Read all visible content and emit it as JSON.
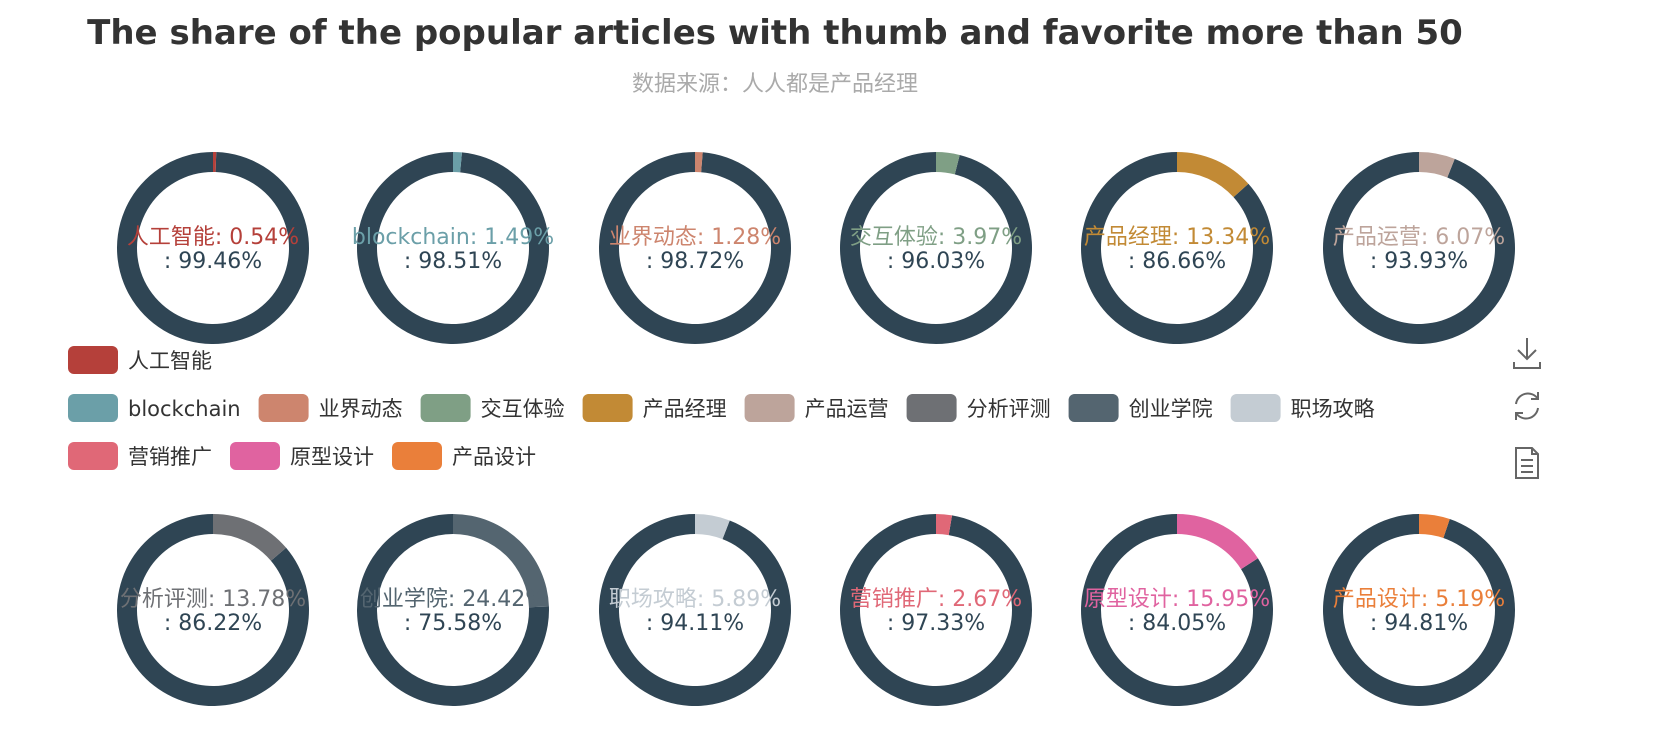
{
  "title": "The share of the popular articles with thumb and favorite more than 50",
  "subtitle": "数据来源：人人都是产品经理",
  "remainder_color": "#2f4554",
  "chart_data": {
    "type": "pie",
    "variant": "donut-grid",
    "title": "The share of the popular articles with thumb and favorite more than 50",
    "subtitle": "数据来源：人人都是产品经理",
    "series": [
      {
        "name": "人工智能",
        "value": 0.54,
        "rest": 99.46,
        "color": "#b5403a"
      },
      {
        "name": "blockchain",
        "value": 1.49,
        "rest": 98.51,
        "color": "#6b9fa8"
      },
      {
        "name": "业界动态",
        "value": 1.28,
        "rest": 98.72,
        "color": "#cd856e"
      },
      {
        "name": "交互体验",
        "value": 3.97,
        "rest": 96.03,
        "color": "#7f9f85"
      },
      {
        "name": "产品经理",
        "value": 13.34,
        "rest": 86.66,
        "color": "#c28a35"
      },
      {
        "name": "产品运营",
        "value": 6.07,
        "rest": 93.93,
        "color": "#bda49b"
      },
      {
        "name": "分析评测",
        "value": 13.78,
        "rest": 86.22,
        "color": "#6e7074"
      },
      {
        "name": "创业学院",
        "value": 24.42,
        "rest": 75.58,
        "color": "#546570"
      },
      {
        "name": "职场攻略",
        "value": 5.89,
        "rest": 94.11,
        "color": "#c4ccd3"
      },
      {
        "name": "营销推广",
        "value": 2.67,
        "rest": 97.33,
        "color": "#e06877"
      },
      {
        "name": "原型设计",
        "value": 15.95,
        "rest": 84.05,
        "color": "#e063a0"
      },
      {
        "name": "产品设计",
        "value": 5.19,
        "rest": 94.81,
        "color": "#ea7f3a"
      }
    ],
    "legend": [
      "人工智能",
      "blockchain",
      "业界动态",
      "交互体验",
      "产品经理",
      "产品运营",
      "分析评测",
      "创业学院",
      "职场攻略",
      "营销推广",
      "原型设计",
      "产品设计"
    ],
    "legend_placement": "middle-left"
  },
  "toolbox": [
    "download-icon",
    "refresh-icon",
    "data-view-icon"
  ]
}
